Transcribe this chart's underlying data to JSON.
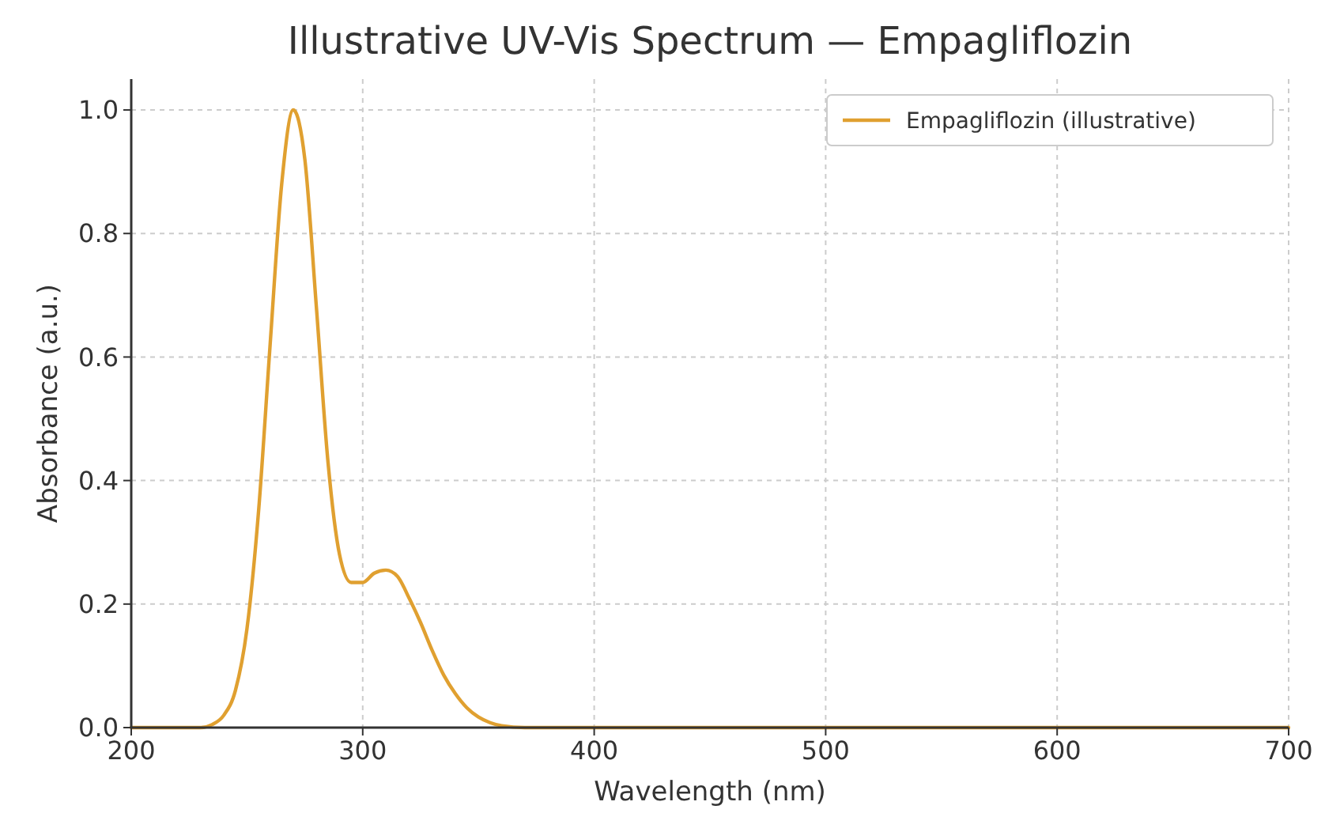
{
  "chart_data": {
    "type": "line",
    "title": "Illustrative UV-Vis Spectrum — Empagliflozin",
    "xlabel": "Wavelength (nm)",
    "ylabel": "Absorbance (a.u.)",
    "xlim": [
      200,
      700
    ],
    "xticks": [
      200,
      300,
      400,
      500,
      600,
      700
    ],
    "ylim": [
      0,
      1.05
    ],
    "yticks": [
      {
        "value": 0,
        "label": "0.0"
      },
      {
        "value": 0.2,
        "label": "0.2"
      },
      {
        "value": 0.4,
        "label": "0.4"
      },
      {
        "value": 0.6,
        "label": "0.6"
      },
      {
        "value": 0.8,
        "label": "0.8"
      },
      {
        "value": 1,
        "label": "1.0"
      }
    ],
    "grid": true,
    "legend": "top right",
    "marker": "none",
    "line_style": "solid",
    "series": [
      {
        "name": "Empagliflozin (illustrative)",
        "color": "#e0a030",
        "x": [
          200,
          230,
          235,
          240,
          245,
          250,
          255,
          260,
          265,
          270,
          275,
          280,
          285,
          290,
          295,
          300,
          305,
          310,
          315,
          320,
          325,
          330,
          335,
          340,
          345,
          350,
          355,
          360,
          370,
          400,
          700
        ],
        "values": [
          0,
          0,
          0.005,
          0.02,
          0.06,
          0.16,
          0.35,
          0.62,
          0.88,
          1.0,
          0.92,
          0.68,
          0.43,
          0.28,
          0.235,
          0.235,
          0.25,
          0.255,
          0.245,
          0.21,
          0.17,
          0.125,
          0.085,
          0.055,
          0.032,
          0.017,
          0.008,
          0.003,
          0,
          0,
          0
        ]
      }
    ]
  }
}
